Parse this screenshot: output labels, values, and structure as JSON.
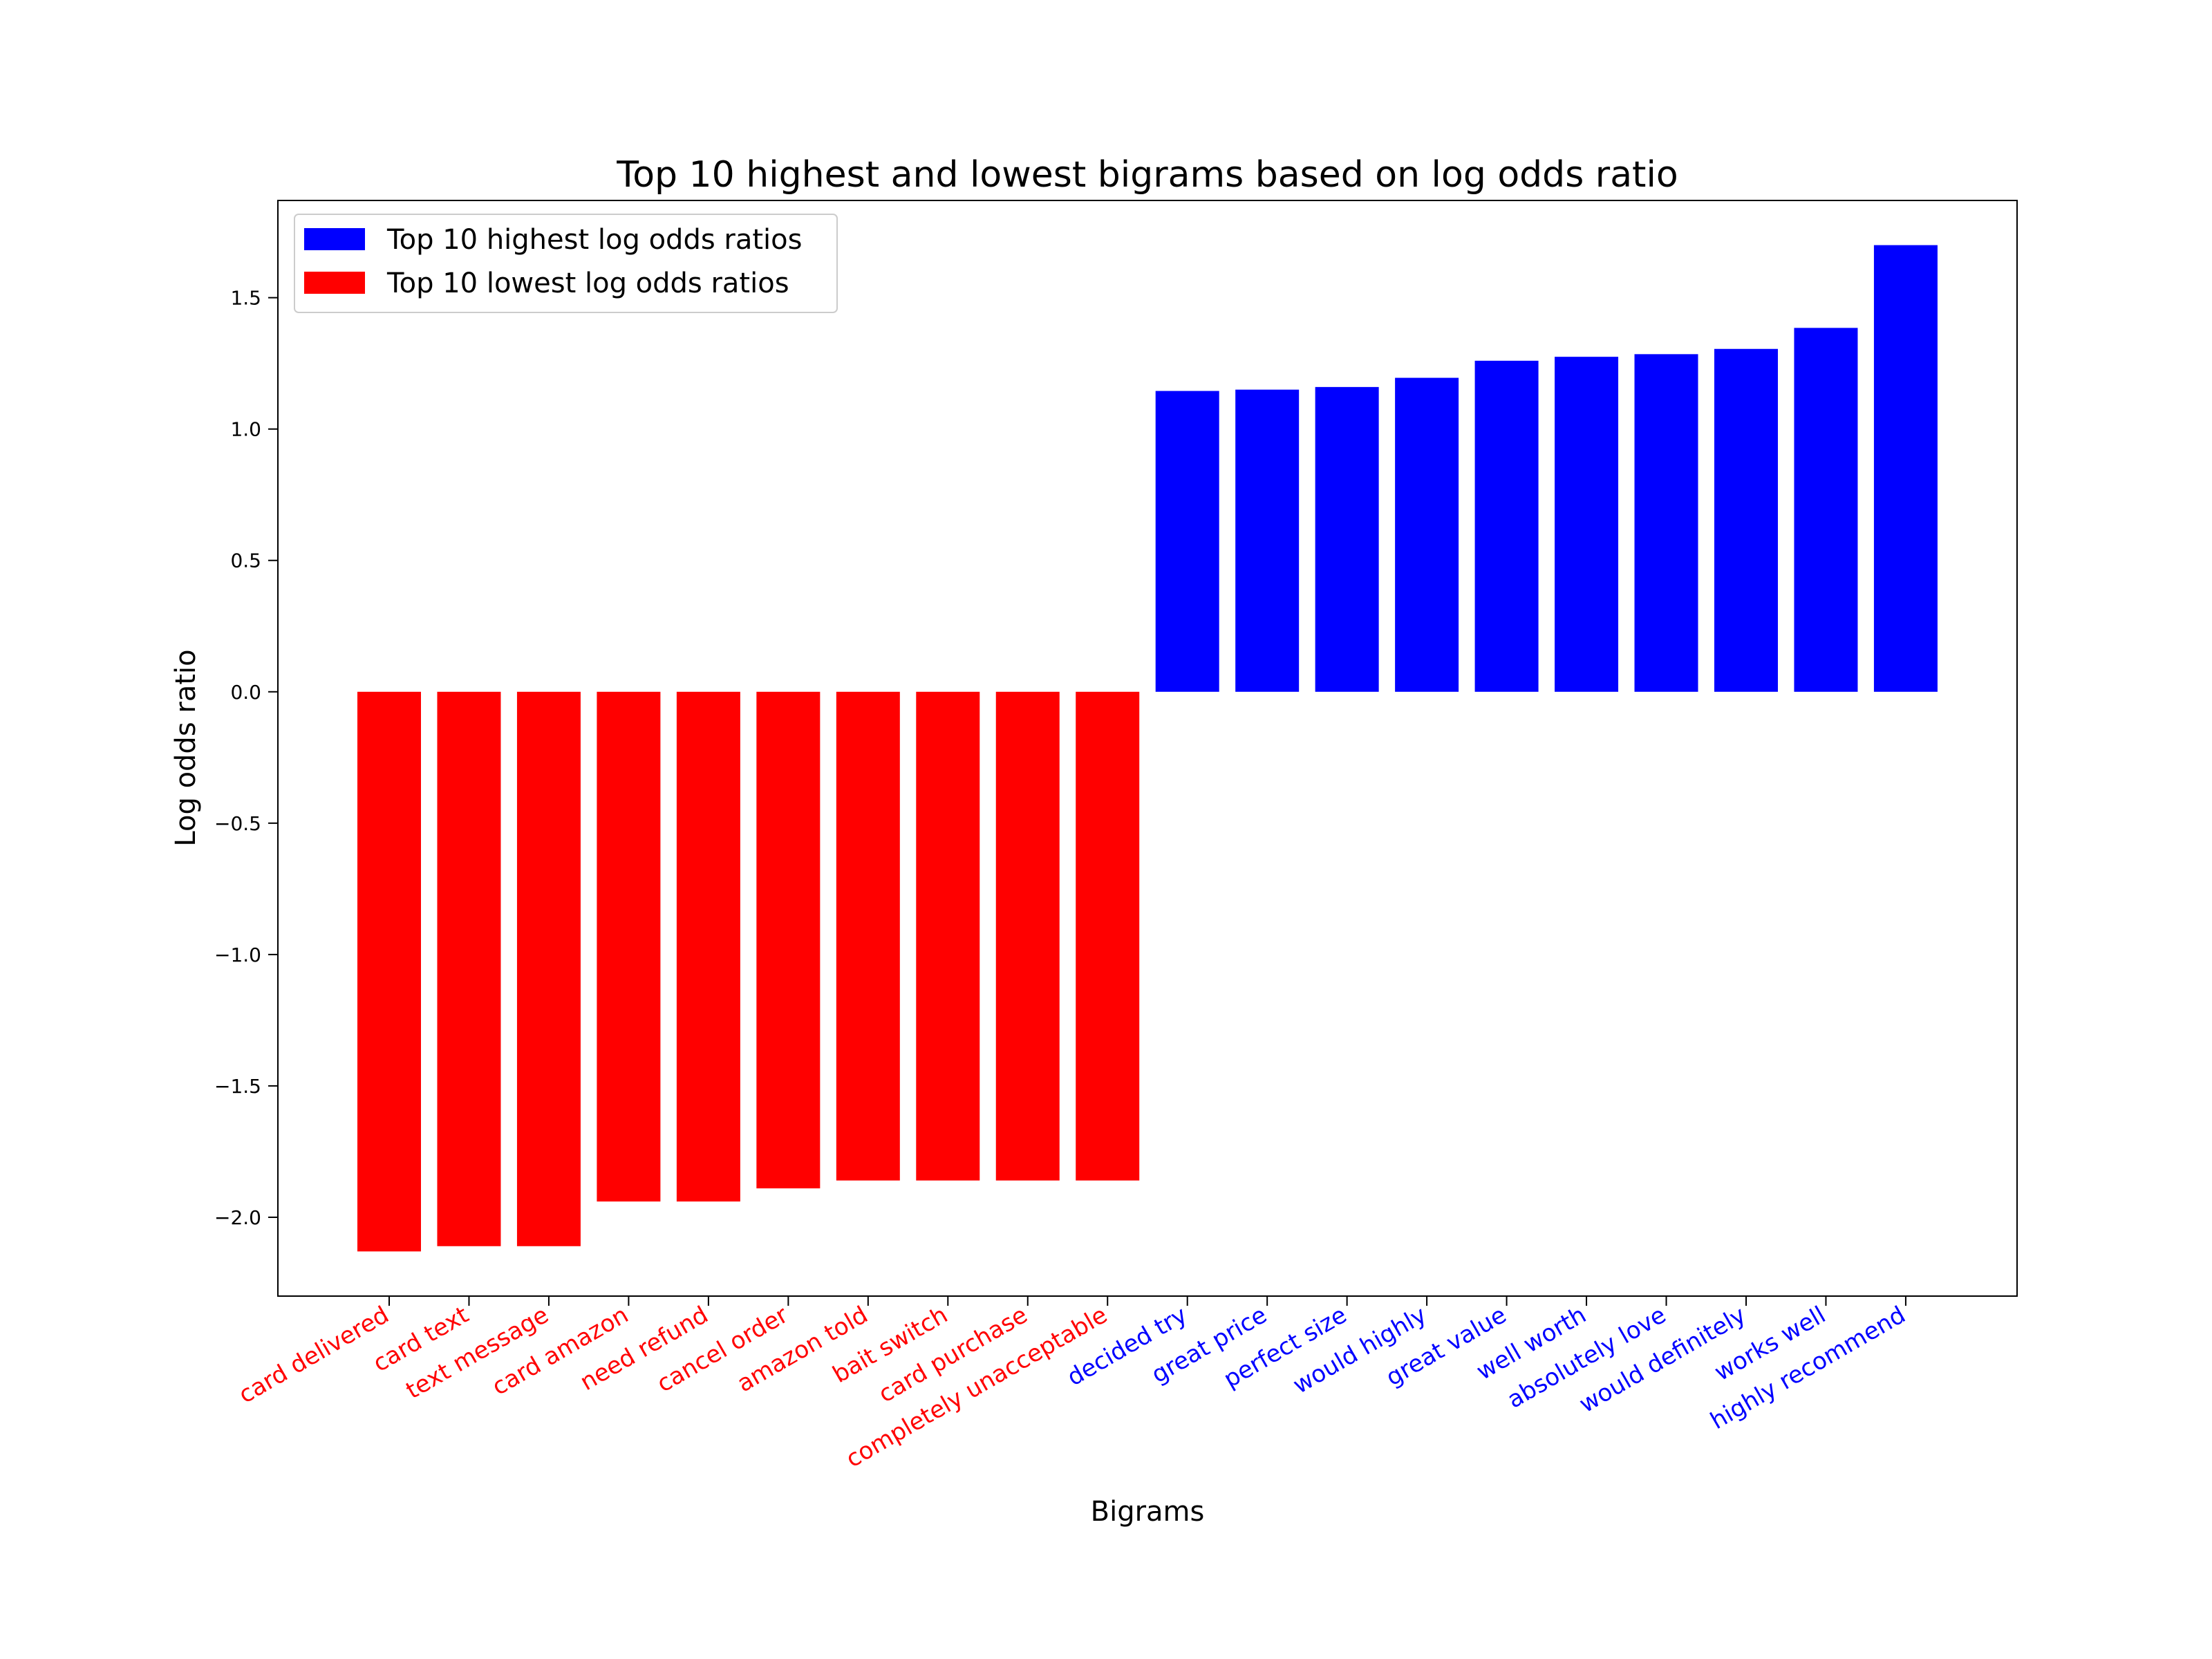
{
  "chart_data": {
    "type": "bar",
    "title": "Top 10 highest and lowest bigrams based on log odds ratio",
    "xlabel": "Bigrams",
    "ylabel": "Log odds ratio",
    "ylim": [
      -2.3,
      1.87
    ],
    "yticks": [
      -2.0,
      -1.5,
      -1.0,
      -0.5,
      0.0,
      0.5,
      1.0,
      1.5
    ],
    "ytick_labels": [
      "−2.0",
      "−1.5",
      "−1.0",
      "−0.5",
      "0.0",
      "0.5",
      "1.0",
      "1.5"
    ],
    "grid": false,
    "legend_position": "top-left",
    "categories": [
      "card delivered",
      "card text",
      "text message",
      "card amazon",
      "need refund",
      "cancel order",
      "amazon told",
      "bait switch",
      "card purchase",
      "completely unacceptable",
      "decided try",
      "great price",
      "perfect size",
      "would highly",
      "great value",
      "well worth",
      "absolutely love",
      "would definitely",
      "works well",
      "highly recommend"
    ],
    "values": [
      -2.13,
      -2.11,
      -2.11,
      -1.94,
      -1.94,
      -1.89,
      -1.86,
      -1.86,
      -1.86,
      -1.86,
      1.145,
      1.15,
      1.16,
      1.195,
      1.26,
      1.275,
      1.285,
      1.305,
      1.385,
      1.7
    ],
    "bar_colors": [
      "#ff0000",
      "#ff0000",
      "#ff0000",
      "#ff0000",
      "#ff0000",
      "#ff0000",
      "#ff0000",
      "#ff0000",
      "#ff0000",
      "#ff0000",
      "#0000ff",
      "#0000ff",
      "#0000ff",
      "#0000ff",
      "#0000ff",
      "#0000ff",
      "#0000ff",
      "#0000ff",
      "#0000ff",
      "#0000ff"
    ],
    "series": [
      {
        "name": "Top 10 highest log odds ratios",
        "color": "#0000ff"
      },
      {
        "name": "Top 10 lowest log odds ratios",
        "color": "#ff0000"
      }
    ]
  }
}
